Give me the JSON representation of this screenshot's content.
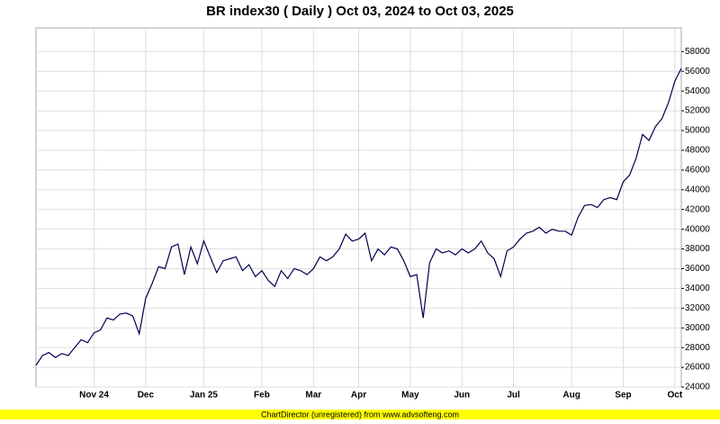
{
  "chart_data": {
    "type": "line",
    "title": "BR index30 ( Daily ) Oct 03, 2024 to Oct 03, 2025",
    "footer": "ChartDirector (unregistered) from www.advsofteng.com",
    "color": "#000050",
    "grid": true,
    "categories": [
      null,
      null,
      null,
      null,
      null,
      null,
      null,
      null,
      null,
      "Nov 24",
      null,
      null,
      null,
      null,
      null,
      null,
      null,
      "Dec",
      null,
      null,
      null,
      null,
      null,
      null,
      null,
      null,
      "Jan 25",
      null,
      null,
      null,
      null,
      null,
      null,
      null,
      null,
      "Feb",
      null,
      null,
      null,
      null,
      null,
      null,
      null,
      "Mar",
      null,
      null,
      null,
      null,
      null,
      null,
      "Apr",
      null,
      null,
      null,
      null,
      null,
      null,
      null,
      "May",
      null,
      null,
      null,
      null,
      null,
      null,
      null,
      "Jun",
      null,
      null,
      null,
      null,
      null,
      null,
      null,
      "Jul",
      null,
      null,
      null,
      null,
      null,
      null,
      null,
      null,
      "Aug",
      null,
      null,
      null,
      null,
      null,
      null,
      null,
      "Sep",
      null,
      null,
      null,
      null,
      null,
      null,
      null,
      "Oct",
      null
    ],
    "values": [
      26200,
      27200,
      27500,
      27000,
      27400,
      27200,
      28000,
      28800,
      28500,
      29500,
      29800,
      31000,
      30800,
      31400,
      31500,
      31200,
      29400,
      33000,
      34500,
      36200,
      36000,
      38200,
      38500,
      35400,
      38200,
      36500,
      38800,
      37200,
      35600,
      36800,
      37000,
      37200,
      35800,
      36400,
      35200,
      35800,
      34800,
      34200,
      35800,
      35000,
      36000,
      35800,
      35400,
      36000,
      37200,
      36800,
      37200,
      38000,
      39500,
      38800,
      39000,
      39600,
      36800,
      38000,
      37400,
      38200,
      38000,
      36800,
      35200,
      35400,
      31000,
      36600,
      38000,
      37600,
      37800,
      37400,
      38000,
      37600,
      38000,
      38800,
      37600,
      37000,
      35200,
      37800,
      38200,
      39000,
      39600,
      39800,
      40200,
      39600,
      40000,
      39800,
      39800,
      39400,
      41200,
      42400,
      42500,
      42200,
      43000,
      43200,
      43000,
      44800,
      45500,
      47200,
      49600,
      49000,
      50400,
      51200,
      52800,
      55000,
      56300
    ],
    "ylim": [
      24000,
      60400
    ],
    "yticks": [
      24000,
      26000,
      28000,
      30000,
      32000,
      34000,
      36000,
      38000,
      40000,
      42000,
      44000,
      46000,
      48000,
      50000,
      52000,
      54000,
      56000,
      58000
    ]
  }
}
